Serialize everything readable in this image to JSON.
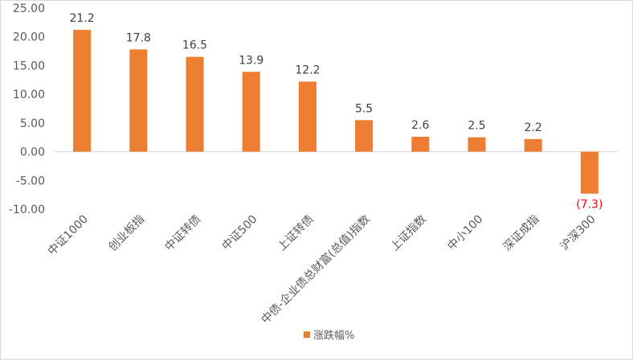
{
  "chart_data": {
    "type": "bar",
    "categories": [
      "中证1000",
      "创业板指",
      "中证转债",
      "中证500",
      "上证转债",
      "中债-企业债总财富(总值)指数",
      "上证指数",
      "中小100",
      "深证成指",
      "沪深300"
    ],
    "values": [
      21.2,
      17.8,
      16.5,
      13.9,
      12.2,
      5.5,
      2.6,
      2.5,
      2.2,
      -7.3
    ],
    "data_labels": [
      "21.2",
      "17.8",
      "16.5",
      "13.9",
      "12.2",
      "5.5",
      "2.6",
      "2.5",
      "2.2",
      "(7.3)"
    ],
    "ylim": [
      -10,
      25
    ],
    "yticks": [
      -10,
      -5,
      0,
      5,
      10,
      15,
      20,
      25
    ],
    "ytick_labels": [
      "-10.00",
      "-5.00",
      "0.00",
      "5.00",
      "10.00",
      "15.00",
      "20.00",
      "25.00"
    ],
    "series": [
      {
        "name": "涨跌幅%",
        "color": "#ed7d31"
      }
    ],
    "negative_label_color": "#ff0000",
    "legend_position": "bottom",
    "grid": false
  }
}
